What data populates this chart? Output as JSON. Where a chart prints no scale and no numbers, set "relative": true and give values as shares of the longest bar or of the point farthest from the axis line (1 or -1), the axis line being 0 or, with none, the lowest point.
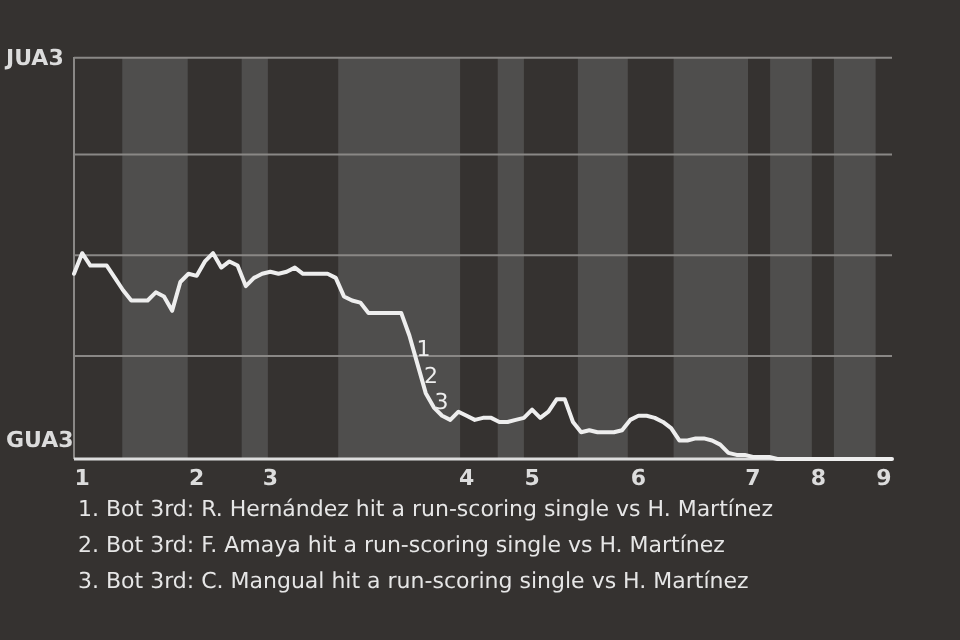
{
  "chart_data": {
    "type": "line",
    "relative": true,
    "categories": [
      null,
      "1",
      null,
      null,
      null,
      null,
      null,
      null,
      null,
      null,
      null,
      null,
      null,
      null,
      null,
      "2",
      null,
      null,
      null,
      null,
      null,
      null,
      null,
      null,
      "3",
      null,
      null,
      null,
      null,
      null,
      null,
      null,
      null,
      null,
      null,
      null,
      null,
      null,
      null,
      null,
      null,
      null,
      null,
      null,
      null,
      null,
      null,
      null,
      "4",
      null,
      null,
      null,
      null,
      null,
      null,
      null,
      "5",
      null,
      null,
      null,
      null,
      null,
      null,
      null,
      null,
      null,
      null,
      null,
      null,
      "6",
      null,
      null,
      null,
      null,
      null,
      null,
      null,
      null,
      null,
      null,
      null,
      null,
      null,
      "7",
      null,
      null,
      null,
      null,
      null,
      null,
      null,
      "8",
      null,
      null,
      null,
      null,
      null,
      null,
      null,
      "9",
      null
    ],
    "marker": "none",
    "line_style": "solid",
    "ref_lines": [
      {
        "axis": "y",
        "value": 0.5,
        "color": "#8a8886"
      },
      {
        "axis": "y",
        "value": 0.99,
        "color": "#8a8886"
      },
      {
        "axis": "y",
        "value": 1.48,
        "color": "#8a8886"
      },
      {
        "axis": "y",
        "value": 1.95,
        "color": "#8a8886"
      }
    ],
    "series": [
      {
        "color": "#eeeeee",
        "values": [
          0.9,
          1.0,
          0.94,
          0.94,
          0.94,
          0.88,
          0.82,
          0.77,
          0.77,
          0.77,
          0.81,
          0.79,
          0.72,
          0.86,
          0.9,
          0.89,
          0.96,
          1.0,
          0.93,
          0.96,
          0.94,
          0.84,
          0.88,
          0.9,
          0.91,
          0.9,
          0.91,
          0.93,
          0.9,
          0.9,
          0.9,
          0.9,
          0.88,
          0.79,
          0.77,
          0.76,
          0.71,
          0.71,
          0.71,
          0.71,
          0.71,
          0.6,
          0.46,
          0.32,
          0.25,
          0.21,
          0.19,
          0.23,
          0.21,
          0.19,
          0.2,
          0.2,
          0.18,
          0.18,
          0.19,
          0.2,
          0.24,
          0.2,
          0.23,
          0.29,
          0.29,
          0.18,
          0.13,
          0.14,
          0.13,
          0.13,
          0.13,
          0.14,
          0.19,
          0.21,
          0.21,
          0.2,
          0.18,
          0.15,
          0.09,
          0.09,
          0.1,
          0.1,
          0.09,
          0.07,
          0.03,
          0.02,
          0.02,
          0.01,
          0.01,
          0.01,
          0,
          0,
          0,
          0,
          0,
          0,
          0,
          0,
          0,
          0,
          0,
          0,
          0,
          0,
          0
        ]
      }
    ],
    "annotations": [
      "JUA3",
      "GUA3",
      {
        "text": "1",
        "y": 0.53
      },
      {
        "text": "2",
        "y": 0.4
      },
      {
        "text": "3",
        "y": 0.27
      },
      "1. Bot 3rd: R. Hernández hit a run-scoring single vs H. Martínez",
      "2. Bot 3rd: F. Amaya hit a run-scoring single vs H. Martínez",
      "3. Bot 3rd: C. Mangual hit a run-scoring single vs H. Martínez"
    ]
  }
}
